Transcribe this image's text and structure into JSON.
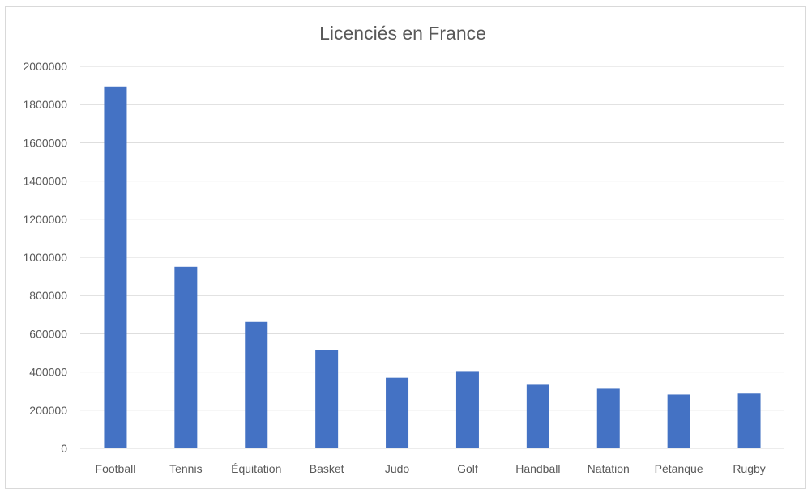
{
  "chart_data": {
    "type": "bar",
    "title": "Licenciés en France",
    "categories": [
      "Football",
      "Tennis",
      "Équitation",
      "Basket",
      "Judo",
      "Golf",
      "Handball",
      "Natation",
      "Pétanque",
      "Rugby"
    ],
    "values": [
      1895000,
      950000,
      662000,
      515000,
      370000,
      405000,
      333000,
      316000,
      282000,
      287000
    ],
    "ylim": [
      0,
      2000000
    ],
    "yticks": [
      0,
      200000,
      400000,
      600000,
      800000,
      1000000,
      1200000,
      1400000,
      1600000,
      1800000,
      2000000
    ],
    "ytick_labels": [
      "0",
      "200000",
      "400000",
      "600000",
      "800000",
      "1000000",
      "1200000",
      "1400000",
      "1600000",
      "1800000",
      "2000000"
    ],
    "grid": true,
    "legend": false,
    "bar_color": "#4472C4",
    "grid_color": "#d9d9d9"
  }
}
